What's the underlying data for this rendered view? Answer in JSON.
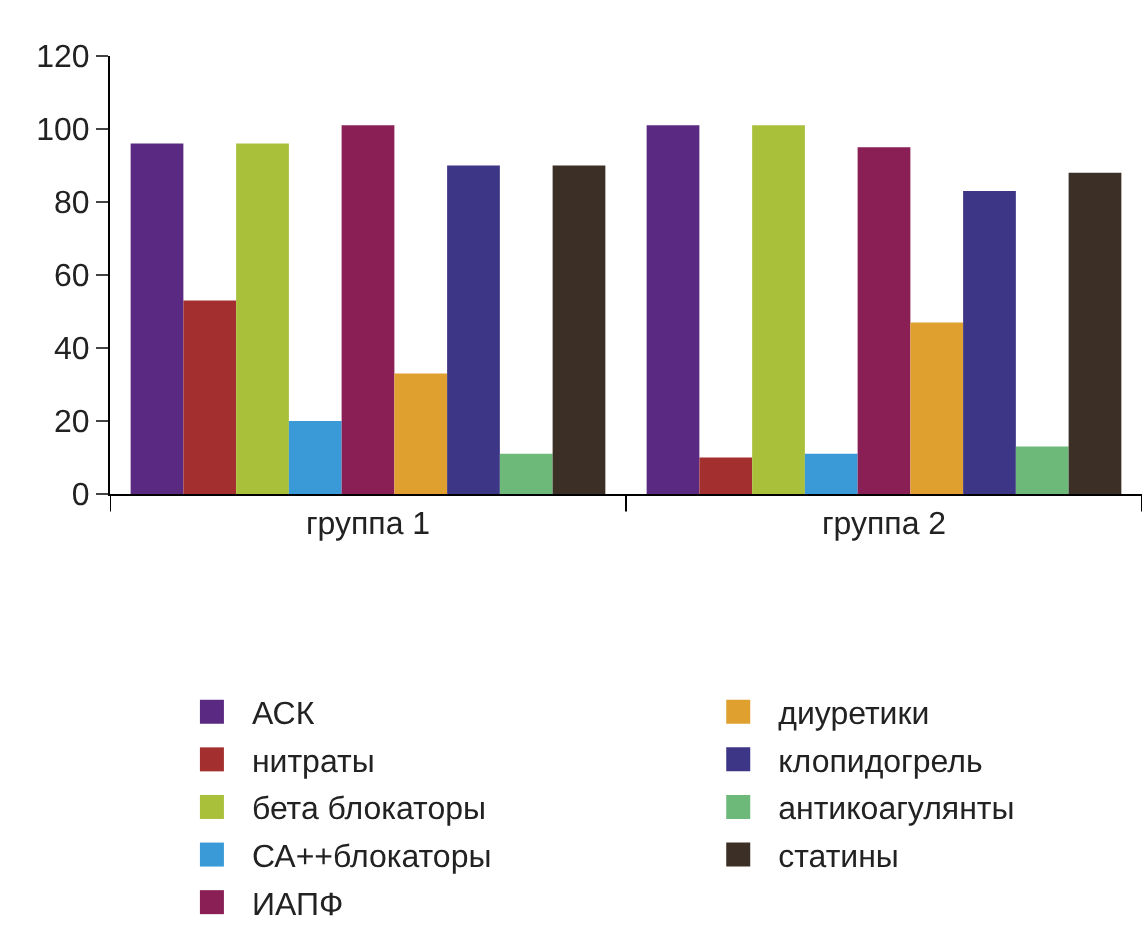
{
  "chart_data": {
    "type": "bar",
    "categories": [
      "группа 1",
      "группа 2"
    ],
    "series": [
      {
        "name": "АСК",
        "color": "#5a2a82",
        "values": [
          96,
          101
        ]
      },
      {
        "name": "нитраты",
        "color": "#a3302f",
        "values": [
          53,
          10
        ]
      },
      {
        "name": "бета блокаторы",
        "color": "#a8c03a",
        "values": [
          96,
          101
        ]
      },
      {
        "name": "СА++блокаторы",
        "color": "#3a9ad8",
        "values": [
          20,
          11
        ]
      },
      {
        "name": "ИАПФ",
        "color": "#8a1f55",
        "values": [
          101,
          95
        ]
      },
      {
        "name": "диуретики",
        "color": "#e0a030",
        "values": [
          33,
          47
        ]
      },
      {
        "name": "клопидогрель",
        "color": "#3d3585",
        "values": [
          90,
          83
        ]
      },
      {
        "name": "антикоагулянты",
        "color": "#6cb97a",
        "values": [
          11,
          13
        ]
      },
      {
        "name": "статины",
        "color": "#3c2f25",
        "values": [
          90,
          88
        ]
      }
    ],
    "ylim": [
      0,
      120
    ],
    "yticks": [
      0,
      20,
      40,
      60,
      80,
      100,
      120
    ],
    "grid": false,
    "legend": "bottom"
  }
}
